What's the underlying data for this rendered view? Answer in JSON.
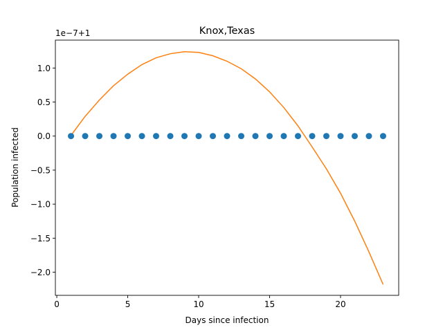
{
  "chart_data": {
    "type": "scatter",
    "title": "Knox,Texas",
    "xlabel": "Days since infection",
    "ylabel": "Population infected",
    "offset_label": "1e−7+1",
    "xlim": [
      -0.1,
      24.1
    ],
    "ylim": [
      -2.34,
      1.41
    ],
    "x_ticks": [
      {
        "value": 0,
        "label": "0"
      },
      {
        "value": 5,
        "label": "5"
      },
      {
        "value": 10,
        "label": "10"
      },
      {
        "value": 15,
        "label": "15"
      },
      {
        "value": 20,
        "label": "20"
      }
    ],
    "y_ticks": [
      {
        "value": 1.0,
        "label": "1.0"
      },
      {
        "value": 0.5,
        "label": "0.5"
      },
      {
        "value": 0.0,
        "label": "0.0"
      },
      {
        "value": -0.5,
        "label": "−0.5"
      },
      {
        "value": -1.0,
        "label": "−1.0"
      },
      {
        "value": -1.5,
        "label": "−1.5"
      },
      {
        "value": -2.0,
        "label": "−2.0"
      }
    ],
    "grid": false,
    "series": [
      {
        "kind": "scatter",
        "color": "#1f77b4",
        "x": [
          1,
          2,
          3,
          4,
          5,
          6,
          7,
          8,
          9,
          10,
          11,
          12,
          13,
          14,
          15,
          16,
          17,
          18,
          19,
          20,
          21,
          22,
          23
        ],
        "y": [
          0,
          0,
          0,
          0,
          0,
          0,
          0,
          0,
          0,
          0,
          0,
          0,
          0,
          0,
          0,
          0,
          0,
          0,
          0,
          0,
          0,
          0,
          0
        ]
      },
      {
        "kind": "line",
        "color": "#ff7f0e",
        "x": [
          1,
          2,
          3,
          4,
          5,
          6,
          7,
          8,
          9,
          10,
          11,
          12,
          13,
          14,
          15,
          16,
          17,
          18,
          19,
          20,
          21,
          22,
          23
        ],
        "y": [
          0.01,
          0.29,
          0.53,
          0.74,
          0.91,
          1.05,
          1.15,
          1.21,
          1.24,
          1.23,
          1.18,
          1.1,
          0.99,
          0.84,
          0.65,
          0.42,
          0.15,
          -0.16,
          -0.48,
          -0.84,
          -1.25,
          -1.7,
          -2.18
        ]
      }
    ]
  }
}
